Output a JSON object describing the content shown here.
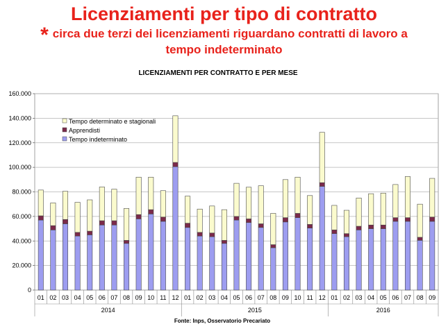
{
  "header": {
    "title": "Licenziamenti per tipo di contratto",
    "star": "*",
    "subtitle_line1": "circa due terzi dei licenziamenti riguardano contratti di lavoro a",
    "subtitle_line2": "tempo indeterminato"
  },
  "colors": {
    "headline": "#e8221b",
    "indeterminato": "#9d9df0",
    "apprendisti": "#7a2a4a",
    "determinato": "#fbfbce"
  },
  "chart_data": {
    "type": "bar",
    "stacked": true,
    "title": "LICENZIAMENTI PER CONTRATTO E PER MESE",
    "source": "Fonte: Inps, Osservatorio Precariato",
    "ylim": [
      0,
      160000
    ],
    "yticks": [
      "0",
      "20.000",
      "40.000",
      "60.000",
      "80.000",
      "100.000",
      "120.000",
      "140.000",
      "160.000"
    ],
    "ytick_values": [
      0,
      20000,
      40000,
      60000,
      80000,
      100000,
      120000,
      140000,
      160000
    ],
    "grid": true,
    "legend_position": "top-left",
    "categories": [
      "01",
      "02",
      "03",
      "04",
      "05",
      "06",
      "07",
      "08",
      "09",
      "10",
      "11",
      "12",
      "01",
      "02",
      "03",
      "04",
      "05",
      "06",
      "07",
      "08",
      "09",
      "10",
      "11",
      "12",
      "01",
      "02",
      "03",
      "04",
      "05",
      "06",
      "07",
      "08",
      "09"
    ],
    "years": [
      {
        "label": "2014",
        "count": 12
      },
      {
        "label": "2015",
        "count": 12
      },
      {
        "label": "2016",
        "count": 9
      }
    ],
    "series": [
      {
        "name": "Tempo indeterminato",
        "values": [
          57000,
          49000,
          54000,
          44000,
          45000,
          53000,
          53000,
          38000,
          58000,
          62000,
          56000,
          100500,
          51000,
          44000,
          43500,
          38000,
          57000,
          55000,
          51000,
          34500,
          55500,
          59000,
          50500,
          84500,
          46000,
          43500,
          49000,
          50000,
          50000,
          56000,
          56000,
          40500,
          56000
        ]
      },
      {
        "name": "Apprendisti",
        "values": [
          3500,
          3500,
          3500,
          3000,
          3000,
          3500,
          3500,
          2500,
          3500,
          3500,
          3500,
          3500,
          3500,
          3000,
          3000,
          2500,
          3000,
          3000,
          3000,
          2500,
          3500,
          3500,
          3000,
          3000,
          3000,
          2500,
          3000,
          3000,
          3000,
          3000,
          3000,
          2500,
          3500
        ]
      },
      {
        "name": "Tempo determinato e stagionali",
        "values": [
          21000,
          18500,
          23000,
          24500,
          25500,
          27500,
          25700,
          26000,
          30500,
          26500,
          21500,
          38000,
          22000,
          19000,
          22000,
          25000,
          27000,
          25800,
          31000,
          25500,
          31000,
          29500,
          23500,
          41000,
          20000,
          19000,
          23000,
          25500,
          26000,
          27000,
          33500,
          27000,
          31500
        ]
      }
    ]
  }
}
